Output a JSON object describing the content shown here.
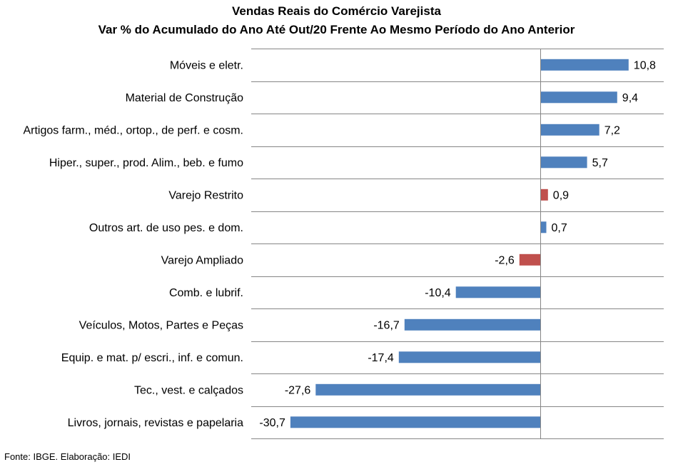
{
  "chart_data": {
    "type": "bar",
    "orientation": "horizontal",
    "title": "Vendas Reais do Comércio Varejista",
    "subtitle": "Var % do Acumulado do Ano Até Out/20 Frente Ao Mesmo Período do Ano Anterior",
    "xlabel": "",
    "ylabel": "",
    "xlim": [
      -35,
      20
    ],
    "grid": "horizontal separators",
    "legend": "none",
    "categories": [
      "Móveis e eletr.",
      "Material de Construção",
      "Artigos farm., méd., ortop., de perf. e cosm.",
      "Hiper., super., prod. Alim., beb. e fumo",
      "Varejo Restrito",
      "Outros art. de uso pes. e dom.",
      "Varejo Ampliado",
      "Comb. e lubrif.",
      "Veículos, Motos, Partes e Peças",
      "Equip. e mat. p/ escri., inf. e comun.",
      "Tec., vest. e calçados",
      "Livros, jornais, revistas e papelaria"
    ],
    "values": [
      10.8,
      9.4,
      7.2,
      5.7,
      0.9,
      0.7,
      -2.6,
      -10.4,
      -16.7,
      -17.4,
      -27.6,
      -30.7
    ],
    "value_labels": [
      "10,8",
      "9,4",
      "7,2",
      "5,7",
      "0,9",
      "0,7",
      "-2,6",
      "-10,4",
      "-16,7",
      "-17,4",
      "-27,6",
      "-30,7"
    ],
    "highlighted": [
      "Varejo Restrito",
      "Varejo Ampliado"
    ],
    "colors": {
      "default": "#4F81BD",
      "highlight": "#C0504D",
      "axis": "#868686",
      "gridline": "#868686"
    }
  },
  "footer": {
    "source": "Fonte: IBGE. Elaboração: IEDI"
  }
}
